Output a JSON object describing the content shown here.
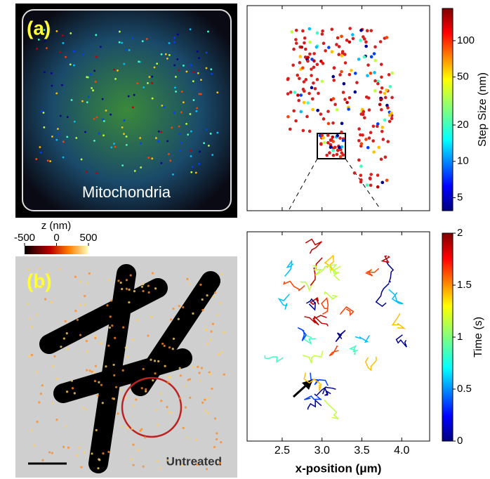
{
  "panel_a": {
    "label": "(a)",
    "caption": "Mitochondria"
  },
  "z_colorbar": {
    "title": "z (nm)",
    "lim": [
      -500,
      500
    ],
    "ticks": [
      -500,
      0,
      500
    ]
  },
  "panel_b": {
    "label": "(b)",
    "caption": "Untreated"
  },
  "step_plot": {
    "colorbar": {
      "title": "Step Size (nm)",
      "log": true,
      "lim": [
        3.9,
        185
      ],
      "ticks": [
        5,
        10,
        20,
        50,
        100
      ]
    }
  },
  "time_plot": {
    "colorbar": {
      "title": "Time (s)",
      "lim": [
        0,
        2
      ],
      "ticks": [
        0,
        0.5,
        1,
        1.5,
        2
      ]
    },
    "xlabel": "x-position (μm)",
    "xlim": [
      2.06,
      4.35
    ],
    "xticks": [
      2.5,
      {
        "value": 3,
        "label": "3.0"
      },
      3.5,
      {
        "value": 4,
        "label": "4.0"
      }
    ]
  }
}
